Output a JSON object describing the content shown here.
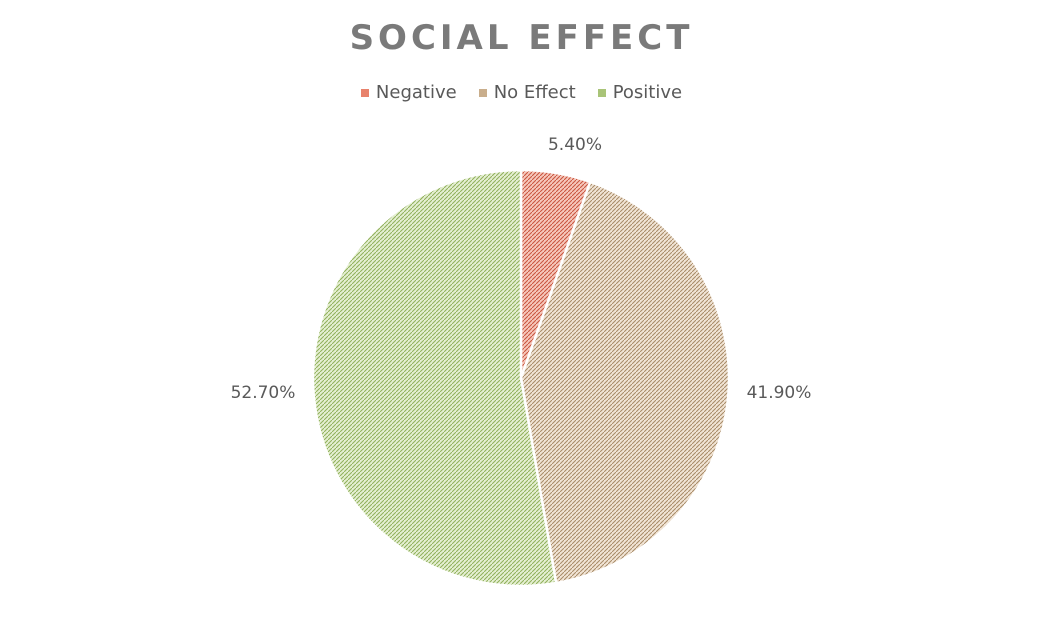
{
  "chart_data": {
    "type": "pie",
    "title": "SOCIAL EFFECT",
    "categories": [
      "Negative",
      "No Effect",
      "Positive"
    ],
    "values": [
      5.4,
      41.9,
      52.7
    ],
    "data_labels": [
      "5.40%",
      "41.90%",
      "52.70%"
    ],
    "colors": [
      "#e8826c",
      "#c9ae8c",
      "#a9c478"
    ],
    "legend_position": "top"
  }
}
